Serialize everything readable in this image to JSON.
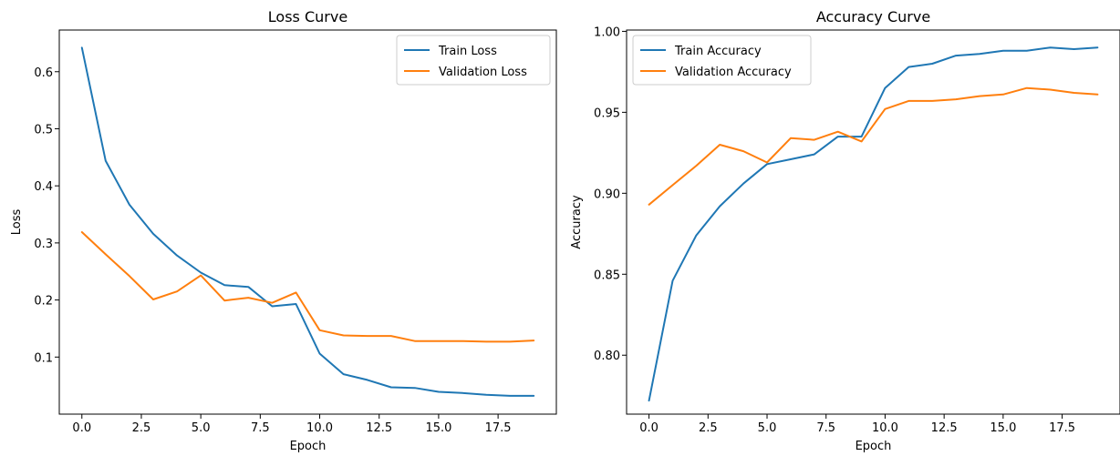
{
  "chart_data": [
    {
      "type": "line",
      "title": "Loss Curve",
      "xlabel": "Epoch",
      "ylabel": "Loss",
      "xlim": [
        -0.95,
        19.95
      ],
      "ylim": [
        0.0,
        0.673
      ],
      "xticks": [
        0.0,
        2.5,
        5.0,
        7.5,
        10.0,
        12.5,
        15.0,
        17.5
      ],
      "xtick_labels": [
        "0.0",
        "2.5",
        "5.0",
        "7.5",
        "10.0",
        "12.5",
        "15.0",
        "17.5"
      ],
      "yticks": [
        0.1,
        0.2,
        0.3,
        0.4,
        0.5,
        0.6
      ],
      "ytick_labels": [
        "0.1",
        "0.2",
        "0.3",
        "0.4",
        "0.5",
        "0.6"
      ],
      "grid": false,
      "legend_position": "top-right",
      "x": [
        0,
        1,
        2,
        3,
        4,
        5,
        6,
        7,
        8,
        9,
        10,
        11,
        12,
        13,
        14,
        15,
        16,
        17,
        18,
        19
      ],
      "series": [
        {
          "name": "Train Loss",
          "color": "#1f77b4",
          "values": [
            0.642,
            0.444,
            0.367,
            0.316,
            0.278,
            0.248,
            0.226,
            0.223,
            0.189,
            0.193,
            0.106,
            0.07,
            0.06,
            0.047,
            0.046,
            0.039,
            0.037,
            0.034,
            0.032,
            0.032
          ]
        },
        {
          "name": "Validation Loss",
          "color": "#ff7f0e",
          "values": [
            0.319,
            0.28,
            0.242,
            0.201,
            0.215,
            0.243,
            0.199,
            0.204,
            0.195,
            0.213,
            0.147,
            0.138,
            0.137,
            0.137,
            0.128,
            0.128,
            0.128,
            0.127,
            0.127,
            0.129
          ]
        }
      ]
    },
    {
      "type": "line",
      "title": "Accuracy Curve",
      "xlabel": "Epoch",
      "ylabel": "Accuracy",
      "xlim": [
        -0.95,
        19.95
      ],
      "ylim": [
        0.7636,
        1.0008
      ],
      "xticks": [
        0.0,
        2.5,
        5.0,
        7.5,
        10.0,
        12.5,
        15.0,
        17.5
      ],
      "xtick_labels": [
        "0.0",
        "2.5",
        "5.0",
        "7.5",
        "10.0",
        "12.5",
        "15.0",
        "17.5"
      ],
      "yticks": [
        0.8,
        0.85,
        0.9,
        0.95,
        1.0
      ],
      "ytick_labels": [
        "0.80",
        "0.85",
        "0.90",
        "0.95",
        "1.00"
      ],
      "grid": false,
      "legend_position": "top-left",
      "x": [
        0,
        1,
        2,
        3,
        4,
        5,
        6,
        7,
        8,
        9,
        10,
        11,
        12,
        13,
        14,
        15,
        16,
        17,
        18,
        19
      ],
      "series": [
        {
          "name": "Train Accuracy",
          "color": "#1f77b4",
          "values": [
            0.772,
            0.846,
            0.874,
            0.892,
            0.906,
            0.918,
            0.921,
            0.924,
            0.935,
            0.935,
            0.965,
            0.978,
            0.98,
            0.985,
            0.986,
            0.988,
            0.988,
            0.99,
            0.989,
            0.99
          ]
        },
        {
          "name": "Validation Accuracy",
          "color": "#ff7f0e",
          "values": [
            0.893,
            0.905,
            0.917,
            0.93,
            0.926,
            0.919,
            0.934,
            0.933,
            0.938,
            0.932,
            0.952,
            0.957,
            0.957,
            0.958,
            0.96,
            0.961,
            0.965,
            0.964,
            0.962,
            0.961
          ]
        }
      ]
    }
  ]
}
